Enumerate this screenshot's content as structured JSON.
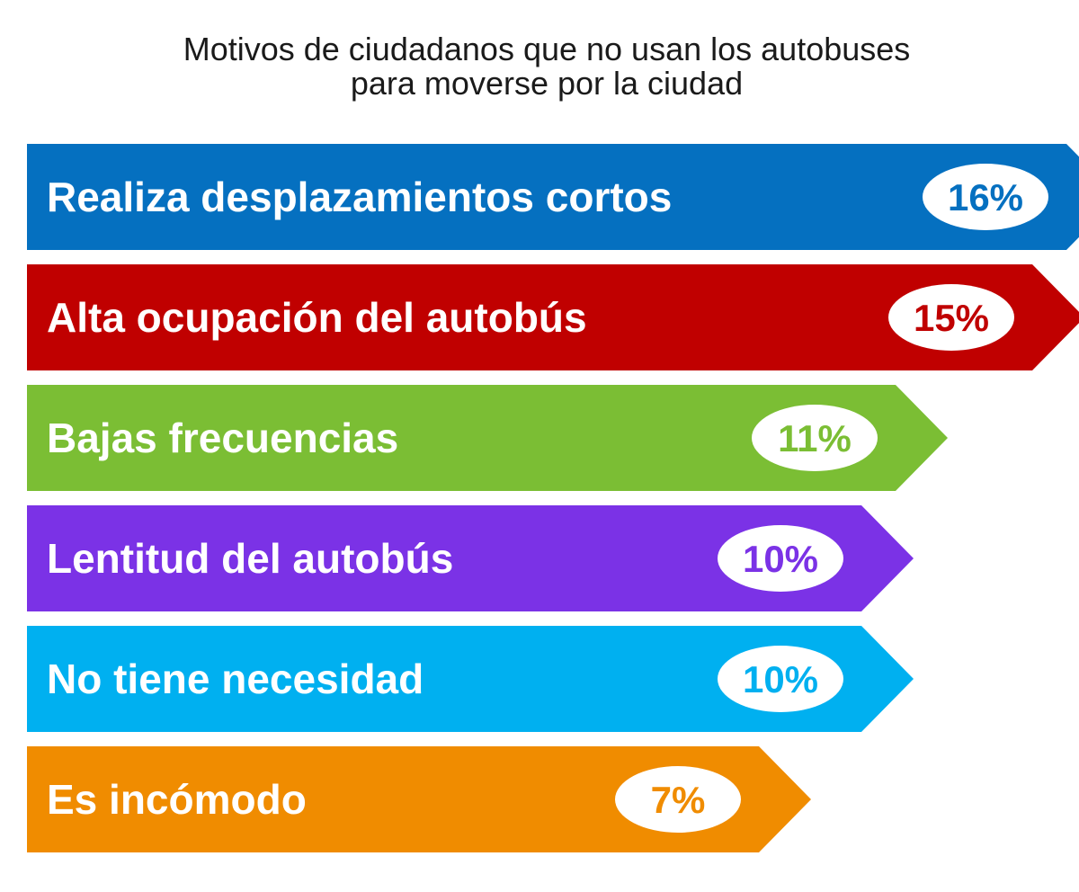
{
  "chart_data": {
    "type": "bar",
    "orientation": "horizontal",
    "title_lines": [
      "Motivos de ciudadanos que no usan los autobuses",
      "para moverse por la ciudad"
    ],
    "categories": [
      "Realiza desplazamientos cortos",
      "Alta ocupación del autobús",
      "Bajas frecuencias",
      "Lentitud del autobús",
      "No tiene necesidad",
      "Es incómodo"
    ],
    "values": [
      16,
      15,
      11,
      10,
      10,
      7
    ],
    "value_labels": [
      "16%",
      "15%",
      "11%",
      "10%",
      "10%",
      "7%"
    ],
    "unit": "%",
    "colors": [
      "#0570c0",
      "#c00000",
      "#7bbe34",
      "#7b32e6",
      "#00b0f0",
      "#f08c00"
    ],
    "value_bubble_color": "#ffffff",
    "legend": "none",
    "grid": false
  }
}
